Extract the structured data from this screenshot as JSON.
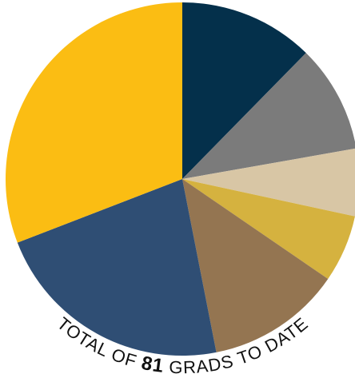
{
  "chart_data": {
    "type": "pie",
    "title": "",
    "caption": {
      "prefix": "TOTAL OF ",
      "number": "81",
      "suffix": " GRADS TO DATE"
    },
    "slices": [
      {
        "value": 10,
        "color": "#04304b"
      },
      {
        "value": 8,
        "color": "#7b7b7b"
      },
      {
        "value": 5,
        "color": "#d8c6a5"
      },
      {
        "value": 5,
        "color": "#d5b23f"
      },
      {
        "value": 10,
        "color": "#947551"
      },
      {
        "value": 18,
        "color": "#2f4e74"
      },
      {
        "value": 25,
        "color": "#fbbd13"
      }
    ]
  }
}
